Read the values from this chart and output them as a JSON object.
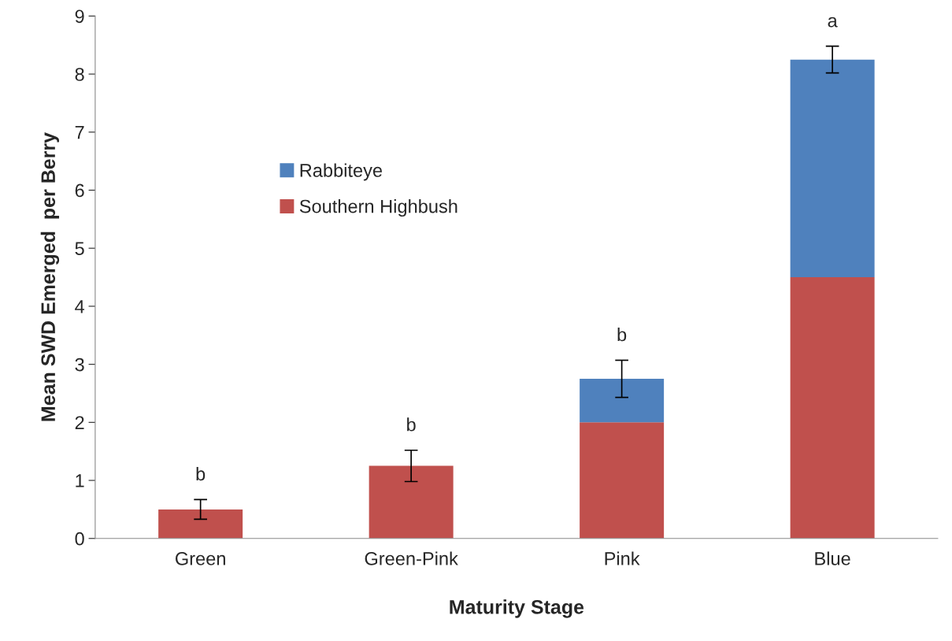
{
  "chart_data": {
    "type": "bar",
    "stacked": true,
    "xlabel": "Maturity Stage",
    "ylabel": "Mean SWD Emerged  per Berry",
    "categories": [
      "Green",
      "Green-Pink",
      "Pink",
      "Blue"
    ],
    "series": [
      {
        "name": "Southern Highbush",
        "color": "#c0504d",
        "values": [
          0.5,
          1.25,
          2.0,
          4.5
        ],
        "errors": [
          0.17,
          0.27,
          null,
          null
        ]
      },
      {
        "name": "Rabbiteye",
        "color": "#4f81bd",
        "values": [
          null,
          null,
          0.75,
          3.75
        ],
        "errors": [
          null,
          null,
          0.32,
          0.23
        ]
      }
    ],
    "ylim": [
      0,
      9
    ],
    "yticks": [
      0,
      1,
      2,
      3,
      4,
      5,
      6,
      7,
      8,
      9
    ],
    "grid": false,
    "legend": "top left",
    "annotations": [
      "b",
      "b",
      "b",
      "a"
    ]
  }
}
